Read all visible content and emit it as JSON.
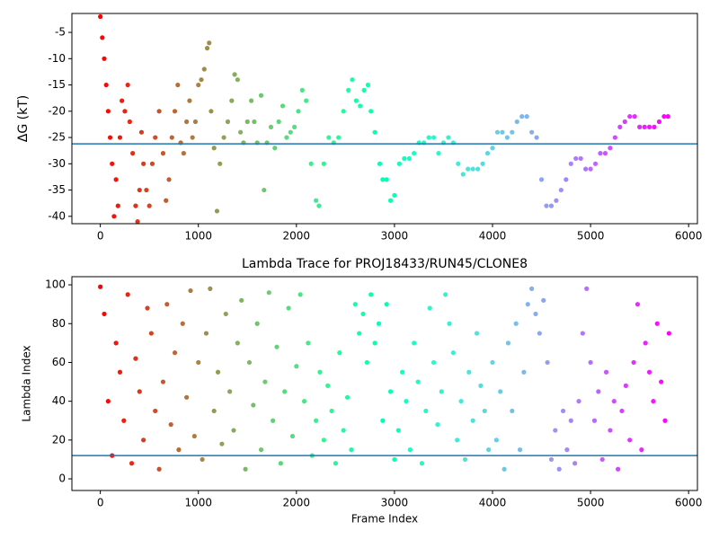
{
  "chart_data": [
    {
      "type": "scatter",
      "ylabel": "ΔG (kT)",
      "colormap": "rainbow_r",
      "x": [
        0,
        20,
        40,
        60,
        80,
        100,
        120,
        140,
        160,
        180,
        200,
        220,
        250,
        280,
        300,
        330,
        360,
        380,
        400,
        420,
        440,
        470,
        500,
        530,
        560,
        600,
        640,
        670,
        700,
        730,
        760,
        790,
        820,
        850,
        880,
        910,
        940,
        970,
        1000,
        1030,
        1060,
        1090,
        1110,
        1130,
        1160,
        1190,
        1220,
        1260,
        1300,
        1340,
        1370,
        1400,
        1430,
        1460,
        1500,
        1540,
        1570,
        1600,
        1640,
        1670,
        1700,
        1740,
        1780,
        1820,
        1860,
        1900,
        1940,
        1980,
        2020,
        2060,
        2100,
        2150,
        2200,
        2230,
        2280,
        2330,
        2380,
        2430,
        2480,
        2530,
        2570,
        2610,
        2650,
        2690,
        2730,
        2760,
        2800,
        2850,
        2880,
        2920,
        2960,
        3000,
        3050,
        3100,
        3150,
        3200,
        3250,
        3300,
        3350,
        3400,
        3450,
        3500,
        3550,
        3600,
        3650,
        3700,
        3750,
        3800,
        3850,
        3900,
        3950,
        4000,
        4050,
        4100,
        4150,
        4200,
        4250,
        4300,
        4350,
        4400,
        4450,
        4500,
        4550,
        4600,
        4650,
        4700,
        4750,
        4800,
        4850,
        4900,
        4950,
        5000,
        5050,
        5100,
        5150,
        5200,
        5250,
        5300,
        5350,
        5400,
        5450,
        5500,
        5550,
        5600,
        5650,
        5700,
        5750,
        5790
      ],
      "values": [
        -2,
        -6,
        -10,
        -15,
        -20,
        -25,
        -30,
        -40,
        -33,
        -38,
        -25,
        -18,
        -20,
        -15,
        -22,
        -28,
        -38,
        -41,
        -35,
        -24,
        -30,
        -35,
        -38,
        -30,
        -25,
        -20,
        -28,
        -37,
        -33,
        -25,
        -20,
        -15,
        -26,
        -28,
        -22,
        -18,
        -25,
        -22,
        -15,
        -14,
        -12,
        -8,
        -7,
        -20,
        -27,
        -39,
        -30,
        -25,
        -22,
        -18,
        -13,
        -14,
        -24,
        -26,
        -22,
        -18,
        -22,
        -26,
        -17,
        -35,
        -26,
        -23,
        -27,
        -22,
        -19,
        -25,
        -24,
        -23,
        -20,
        -16,
        -18,
        -30,
        -37,
        -38,
        -30,
        -25,
        -26,
        -25,
        -20,
        -16,
        -14,
        -18,
        -19,
        -16,
        -15,
        -20,
        -24,
        -30,
        -33,
        -33,
        -37,
        -36,
        -30,
        -29,
        -29,
        -28,
        -26,
        -26,
        -25,
        -25,
        -28,
        -26,
        -25,
        -26,
        -30,
        -32,
        -31,
        -31,
        -31,
        -30,
        -28,
        -27,
        -24,
        -24,
        -25,
        -24,
        -22,
        -21,
        -21,
        -24,
        -25,
        -33,
        -38,
        -38,
        -37,
        -35,
        -33,
        -30,
        -29,
        -29,
        -31,
        -31,
        -30,
        -28,
        -28,
        -27,
        -25,
        -23,
        -22,
        -21,
        -21,
        -23,
        -23,
        -23,
        -23,
        -22,
        -21,
        -21
      ],
      "xlim": [
        -290,
        6090
      ],
      "xticks": [
        0,
        1000,
        2000,
        3000,
        4000,
        5000,
        6000
      ],
      "ylim": [
        -41.4,
        -1.4
      ],
      "yticks": [
        -40,
        -35,
        -30,
        -25,
        -20,
        -15,
        -10,
        -5
      ],
      "hline": -26.2,
      "hline_color": "#1f77b4"
    },
    {
      "type": "scatter",
      "title": "Lambda Trace for PROJ18433/RUN45/CLONE8",
      "xlabel": "Frame Index",
      "ylabel": "Lambda Index",
      "colormap": "rainbow_r",
      "x": [
        0,
        40,
        80,
        120,
        160,
        200,
        240,
        280,
        320,
        360,
        400,
        440,
        480,
        520,
        560,
        600,
        640,
        680,
        720,
        760,
        800,
        840,
        880,
        920,
        960,
        1000,
        1040,
        1080,
        1120,
        1160,
        1200,
        1240,
        1280,
        1320,
        1360,
        1400,
        1440,
        1480,
        1520,
        1560,
        1600,
        1640,
        1680,
        1720,
        1760,
        1800,
        1840,
        1880,
        1920,
        1960,
        2000,
        2040,
        2080,
        2120,
        2160,
        2200,
        2240,
        2280,
        2320,
        2360,
        2400,
        2440,
        2480,
        2520,
        2560,
        2600,
        2640,
        2680,
        2720,
        2760,
        2800,
        2840,
        2880,
        2920,
        2960,
        3000,
        3040,
        3080,
        3120,
        3160,
        3200,
        3240,
        3280,
        3320,
        3360,
        3400,
        3440,
        3480,
        3520,
        3560,
        3600,
        3640,
        3680,
        3720,
        3760,
        3800,
        3840,
        3880,
        3920,
        3960,
        4000,
        4040,
        4080,
        4120,
        4160,
        4200,
        4240,
        4280,
        4320,
        4360,
        4400,
        4440,
        4480,
        4520,
        4560,
        4600,
        4640,
        4680,
        4720,
        4760,
        4800,
        4840,
        4880,
        4920,
        4960,
        5000,
        5040,
        5080,
        5120,
        5160,
        5200,
        5240,
        5280,
        5320,
        5360,
        5400,
        5440,
        5480,
        5520,
        5560,
        5600,
        5640,
        5680,
        5720,
        5760,
        5800
      ],
      "values": [
        99,
        85,
        40,
        12,
        70,
        55,
        30,
        95,
        8,
        62,
        45,
        20,
        88,
        75,
        35,
        5,
        50,
        90,
        28,
        65,
        15,
        80,
        42,
        97,
        22,
        60,
        10,
        75,
        98,
        35,
        55,
        18,
        85,
        45,
        25,
        70,
        92,
        5,
        60,
        38,
        80,
        15,
        50,
        96,
        30,
        68,
        8,
        45,
        88,
        22,
        58,
        95,
        40,
        70,
        12,
        30,
        55,
        20,
        48,
        35,
        8,
        65,
        25,
        42,
        15,
        90,
        75,
        85,
        60,
        95,
        70,
        80,
        30,
        90,
        45,
        10,
        25,
        55,
        40,
        15,
        70,
        50,
        8,
        35,
        88,
        60,
        28,
        45,
        95,
        80,
        65,
        20,
        40,
        10,
        55,
        30,
        75,
        48,
        35,
        15,
        60,
        20,
        45,
        5,
        70,
        35,
        80,
        15,
        55,
        90,
        98,
        85,
        75,
        92,
        60,
        10,
        25,
        5,
        35,
        15,
        30,
        8,
        40,
        75,
        98,
        60,
        30,
        45,
        10,
        55,
        25,
        40,
        5,
        35,
        48,
        20,
        60,
        90,
        15,
        70,
        55,
        40,
        80,
        50,
        30,
        75
      ],
      "xlim": [
        -290,
        6090
      ],
      "xticks": [
        0,
        1000,
        2000,
        3000,
        4000,
        5000,
        6000
      ],
      "ylim": [
        -6,
        104.2
      ],
      "yticks": [
        0,
        20,
        40,
        60,
        80,
        100
      ],
      "hline": 12,
      "hline_color": "#1f77b4"
    }
  ]
}
